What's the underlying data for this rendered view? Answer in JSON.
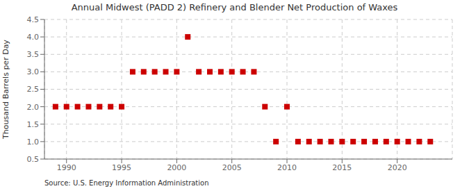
{
  "chart_data": {
    "type": "scatter",
    "title": "Annual Midwest (PADD 2) Refinery and Blender Net Production of Waxes",
    "ylabel": "Thousand Barrels per Day",
    "annotation": "Source: U.S. Energy Information Administration",
    "x": [
      1989,
      1990,
      1991,
      1992,
      1993,
      1994,
      1995,
      1996,
      1997,
      1998,
      1999,
      2000,
      2001,
      2002,
      2003,
      2004,
      2005,
      2006,
      2007,
      2008,
      2009,
      2010,
      2011,
      2012,
      2013,
      2014,
      2015,
      2016,
      2017,
      2018,
      2019,
      2020,
      2021,
      2022,
      2023
    ],
    "values": [
      2.0,
      2.0,
      2.0,
      2.0,
      2.0,
      2.0,
      2.0,
      3.0,
      3.0,
      3.0,
      3.0,
      3.0,
      4.0,
      3.0,
      3.0,
      3.0,
      3.0,
      3.0,
      3.0,
      2.0,
      1.0,
      2.0,
      1.0,
      1.0,
      1.0,
      1.0,
      1.0,
      1.0,
      1.0,
      1.0,
      1.0,
      1.0,
      1.0,
      1.0,
      1.0
    ],
    "color": "#cc0000",
    "marker": "square",
    "xlim": [
      1988,
      2025
    ],
    "ylim": [
      0.5,
      4.5
    ],
    "xticks": [
      1990,
      1995,
      2000,
      2005,
      2010,
      2015,
      2020
    ],
    "yticks": [
      0.5,
      {
        "value": 1.0,
        "label": "1.0"
      },
      1.5,
      {
        "value": 2.0,
        "label": "2.0"
      },
      2.5,
      {
        "value": 3.0,
        "label": "3.0"
      },
      3.5,
      {
        "value": 4.0,
        "label": "4.0"
      },
      4.5
    ],
    "grid": true
  }
}
